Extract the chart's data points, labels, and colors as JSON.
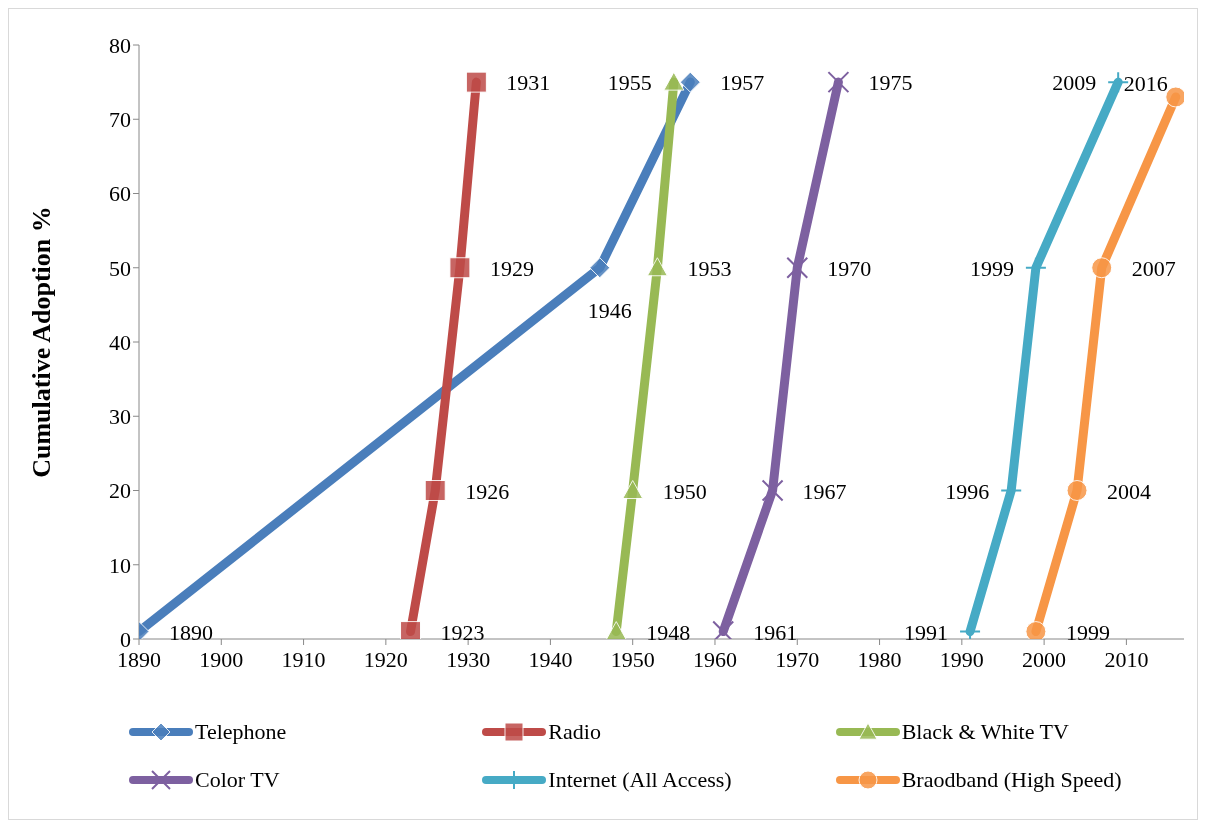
{
  "chart_data": {
    "type": "line",
    "ylabel": "Cumulative Adoption %",
    "xlim": [
      1890,
      2017
    ],
    "xticks": [
      1890,
      1900,
      1910,
      1920,
      1930,
      1940,
      1950,
      1960,
      1970,
      1980,
      1990,
      2000,
      2010
    ],
    "ylim": [
      0,
      80
    ],
    "yticks": [
      0,
      10,
      20,
      30,
      40,
      50,
      60,
      70,
      80
    ],
    "legend": "bottom",
    "series": [
      {
        "name": "Telephone",
        "color": "#4a7ebb",
        "marker": "diamond",
        "x": [
          1890,
          1946,
          1957
        ],
        "values": [
          1,
          50,
          75
        ]
      },
      {
        "name": "Radio",
        "color": "#be4b48",
        "marker": "square",
        "x": [
          1923,
          1926,
          1929,
          1931
        ],
        "values": [
          1,
          20,
          50,
          75
        ]
      },
      {
        "name": "Black & White TV",
        "color": "#98b954",
        "marker": "triangle",
        "x": [
          1948,
          1950,
          1953,
          1955
        ],
        "values": [
          1,
          20,
          50,
          75
        ]
      },
      {
        "name": "Color TV",
        "color": "#7d60a0",
        "marker": "cross",
        "x": [
          1961,
          1967,
          1970,
          1975
        ],
        "values": [
          1,
          20,
          50,
          75
        ]
      },
      {
        "name": "Internet (All Access)",
        "color": "#46aac5",
        "marker": "plus",
        "x": [
          1991,
          1996,
          1999,
          2009
        ],
        "values": [
          1,
          20,
          50,
          75
        ]
      },
      {
        "name": "Braodband (High Speed)",
        "color": "#f79646",
        "marker": "circle",
        "x": [
          1999,
          2004,
          2007,
          2016
        ],
        "values": [
          1,
          20,
          50,
          73
        ]
      }
    ],
    "annotations": [
      {
        "text": "1890",
        "x": 1890,
        "y": 1
      },
      {
        "text": "1946",
        "x": 1946,
        "y": 50
      },
      {
        "text": "1957",
        "x": 1957,
        "y": 75
      },
      {
        "text": "1923",
        "x": 1923,
        "y": 1
      },
      {
        "text": "1926",
        "x": 1926,
        "y": 20
      },
      {
        "text": "1929",
        "x": 1929,
        "y": 50
      },
      {
        "text": "1931",
        "x": 1931,
        "y": 75
      },
      {
        "text": "1948",
        "x": 1948,
        "y": 1
      },
      {
        "text": "1950",
        "x": 1950,
        "y": 20
      },
      {
        "text": "1953",
        "x": 1953,
        "y": 50
      },
      {
        "text": "1955",
        "x": 1955,
        "y": 75
      },
      {
        "text": "1961",
        "x": 1961,
        "y": 1
      },
      {
        "text": "1967",
        "x": 1967,
        "y": 20
      },
      {
        "text": "1970",
        "x": 1970,
        "y": 50
      },
      {
        "text": "1975",
        "x": 1975,
        "y": 75
      },
      {
        "text": "1991",
        "x": 1991,
        "y": 1
      },
      {
        "text": "1996",
        "x": 1996,
        "y": 20
      },
      {
        "text": "1999",
        "x": 1999,
        "y": 50
      },
      {
        "text": "2009",
        "x": 2009,
        "y": 75
      },
      {
        "text": "1999",
        "x": 1999,
        "y": 1
      },
      {
        "text": "2004",
        "x": 2004,
        "y": 20
      },
      {
        "text": "2007",
        "x": 2007,
        "y": 50
      },
      {
        "text": "2016",
        "x": 2016,
        "y": 73
      }
    ]
  }
}
